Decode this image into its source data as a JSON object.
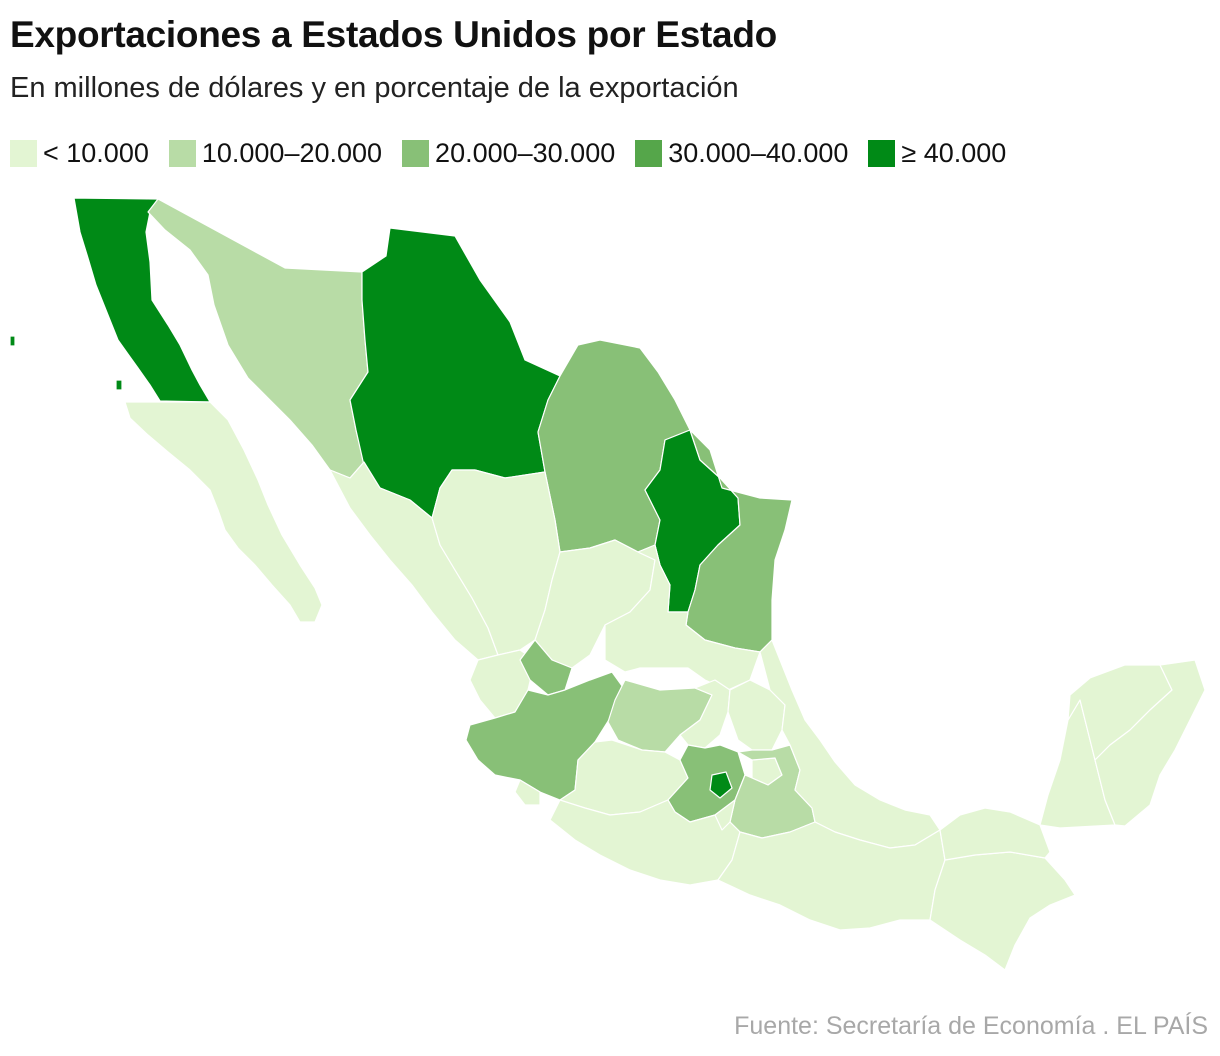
{
  "title": "Exportaciones a Estados Unidos por Estado",
  "subtitle": "En millones de dólares y en porcentaje de la exportación",
  "legend": [
    {
      "label": "< 10.000",
      "color": "#e3f5d3"
    },
    {
      "label": "10.000–20.000",
      "color": "#b8dca6"
    },
    {
      "label": "20.000–30.000",
      "color": "#88c077"
    },
    {
      "label": "30.000–40.000",
      "color": "#55a64a"
    },
    {
      "label": "≥ 40.000",
      "color": "#008a16"
    }
  ],
  "source": "Fuente: Secretaría de Economía . EL PAÍS",
  "states": {
    "baja_california": 4,
    "baja_california_sur": 0,
    "sonora": 1,
    "chihuahua": 4,
    "coahuila": 2,
    "nuevo_leon": 4,
    "tamaulipas": 2,
    "sinaloa": 0,
    "durango": 0,
    "zacatecas": 0,
    "san_luis_potosi": 0,
    "nayarit": 0,
    "aguascalientes": 2,
    "jalisco": 2,
    "guanajuato": 1,
    "queretaro": 0,
    "hidalgo": 0,
    "michoacan": 0,
    "estado_de_mexico": 2,
    "ciudad_de_mexico": 4,
    "tlaxcala": 0,
    "puebla": 1,
    "veracruz": 0,
    "colima": 0,
    "guerrero": 0,
    "morelos": 0,
    "oaxaca": 0,
    "chiapas": 0,
    "tabasco": 0,
    "campeche": 0,
    "yucatan": 0,
    "quintana_roo": 0
  }
}
